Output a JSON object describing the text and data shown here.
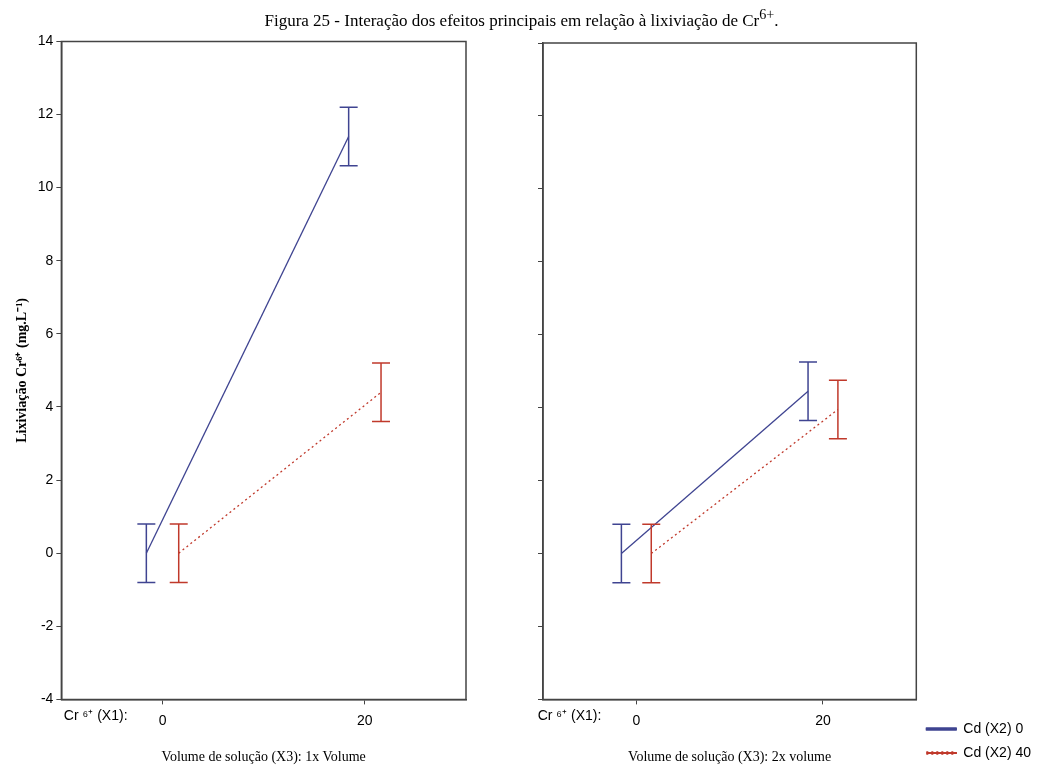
{
  "chart_data": [
    {
      "type": "line",
      "title": "Figura 25 - Interação dos efeitos principais em relação à lixiviação de Cr$^{6+}$.",
      "xlabel": "Volume de solução (X3): 1x Volume",
      "ylabel": "Lixiviação Cr⁶⁺ (mg.L⁻¹)",
      "annotations": [
        "Cr ⁶⁺ (X1):"
      ],
      "categories": [
        "0",
        "20"
      ],
      "ylim": [
        -4,
        14
      ],
      "yticks": [
        -4,
        -2,
        0,
        2,
        4,
        6,
        8,
        10,
        12,
        14
      ],
      "marker": "none",
      "legend": false,
      "series": [
        {
          "color": "#3f4491",
          "values": [
            0,
            11.4
          ],
          "errors": [
            0.8,
            0.8
          ],
          "line_style": "solid"
        },
        {
          "color": "#c0392b",
          "values": [
            0,
            4.4
          ],
          "errors": [
            0.8,
            0.8
          ],
          "line_style": "dotted"
        }
      ]
    },
    {
      "type": "line",
      "xlabel": "Volume de solução (X3): 2x volume",
      "annotations": [
        "Cr ⁶⁺ (X1):"
      ],
      "categories": [
        "0",
        "20"
      ],
      "ylim": [
        -4,
        14
      ],
      "yticks": [
        -4,
        -2,
        0,
        2,
        4,
        6,
        8,
        10,
        12,
        14
      ],
      "tick_labels": "x",
      "marker": "none",
      "legend": "bottom right",
      "series": [
        {
          "name": "Cd (X2) 0",
          "color": "#3f4491",
          "values": [
            0,
            4.45
          ],
          "errors": [
            0.8,
            0.8
          ],
          "line_style": "solid"
        },
        {
          "name": "Cd (X2) 40",
          "color": "#c0392b",
          "values": [
            0,
            3.95
          ],
          "errors": [
            0.8,
            0.8
          ],
          "line_style": "dotted"
        }
      ]
    }
  ]
}
